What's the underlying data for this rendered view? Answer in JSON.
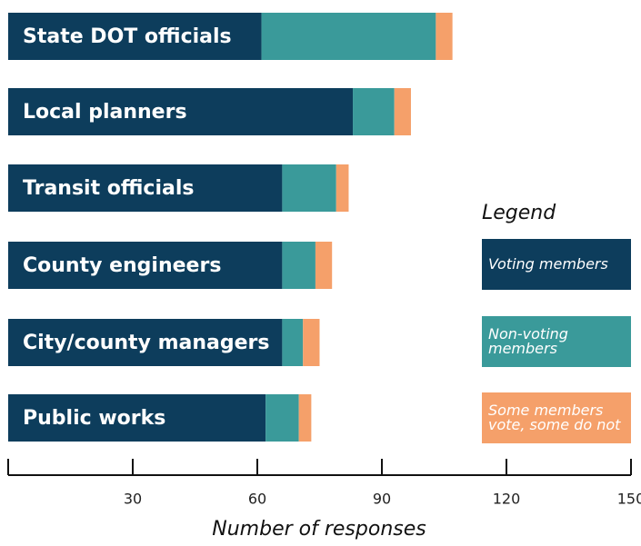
{
  "chart_data": {
    "type": "stacked-barh",
    "categories": [
      "State DOT officials",
      "Local planners",
      "Transit officials",
      "County engineers",
      "City/county managers",
      "Public works"
    ],
    "series": [
      {
        "name": "Voting members",
        "color": "#0d3d5c",
        "values": [
          61,
          83,
          66,
          66,
          66,
          62
        ]
      },
      {
        "name": "Non-voting members",
        "color": "#3a9a9a",
        "values": [
          42,
          10,
          13,
          8,
          5,
          8
        ]
      },
      {
        "name": "Some members vote, some do not",
        "color": "#f5a06a",
        "values": [
          4,
          4,
          3,
          4,
          4,
          3
        ]
      }
    ],
    "xlim": [
      0,
      150
    ],
    "xticks": [
      30,
      60,
      90,
      120,
      150
    ],
    "x_label": "Number of responses",
    "legend_title": "Legend",
    "legend": "right"
  }
}
